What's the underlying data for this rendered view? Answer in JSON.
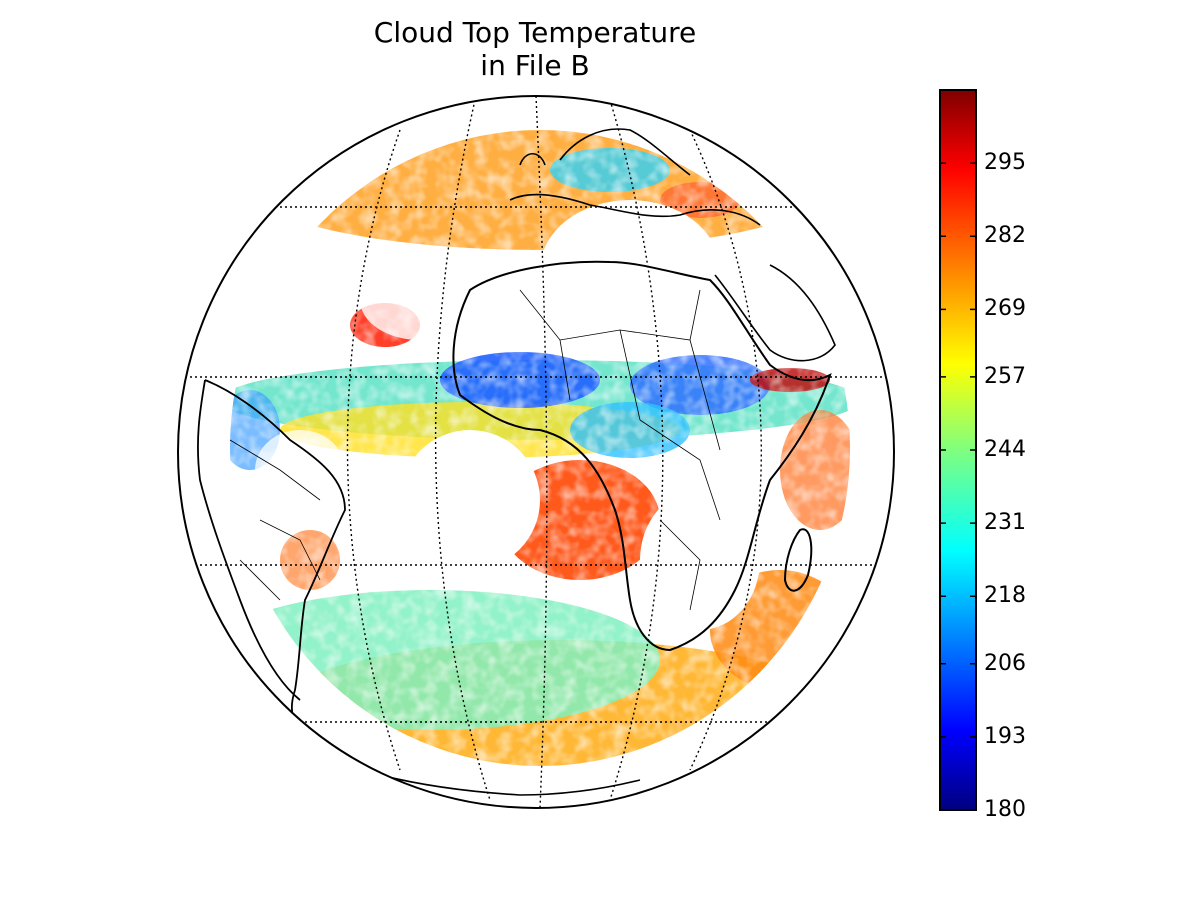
{
  "title": {
    "line1": "Cloud Top Temperature",
    "line2": "in File B"
  },
  "colorbar": {
    "colormap": "jet",
    "range": [
      180,
      308
    ],
    "ticks": [
      "180",
      "193",
      "206",
      "218",
      "231",
      "244",
      "257",
      "269",
      "282",
      "295"
    ],
    "tick_values": [
      180,
      193,
      206,
      218,
      231,
      244,
      257,
      269,
      282,
      295
    ],
    "colors": [
      "#00007f",
      "#0000ff",
      "#007fff",
      "#00ffff",
      "#7fff7f",
      "#ffff00",
      "#ff7f00",
      "#ff0000",
      "#7f0000"
    ]
  },
  "map": {
    "projection": "orthographic",
    "center": "Atlantic Ocean / Africa",
    "graticule": "dotted",
    "colors": {
      "cold_cloud": "#1e64ff",
      "mid_cloud": "#5cf0a0",
      "warm_cloud": "#ff5a10",
      "land_outline": "#000000"
    }
  }
}
